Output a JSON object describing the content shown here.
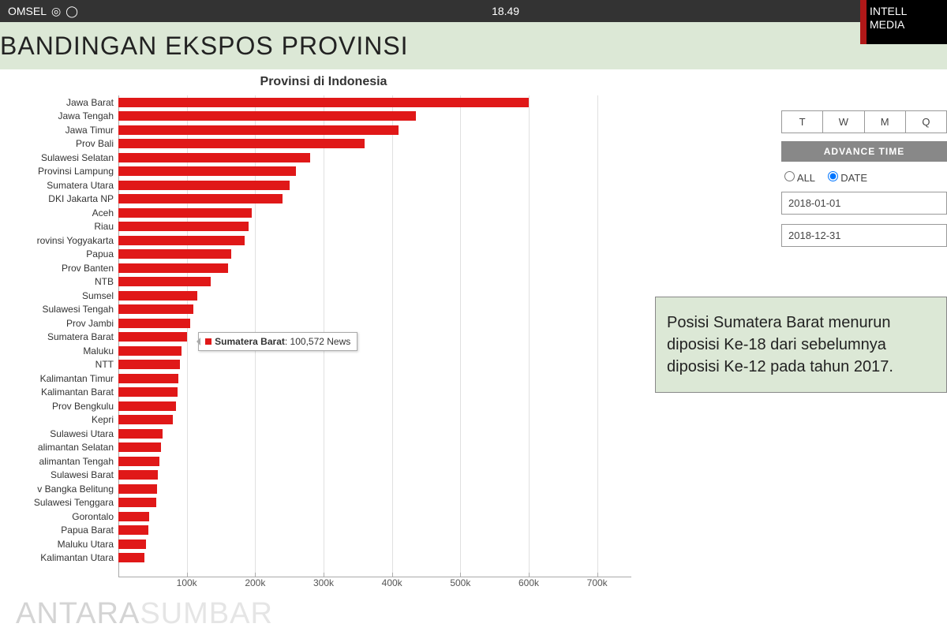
{
  "statusbar": {
    "carrier": "OMSEL",
    "time": "18.49"
  },
  "header": {
    "title": "BANDINGAN EKSPOS PROVINSI"
  },
  "logo": {
    "line1": "INTELL",
    "line2": "MEDIA"
  },
  "chart": {
    "type": "horizontal_bar",
    "title": "Provinsi di Indonesia",
    "bar_color": "#e01818",
    "background_color": "#ffffff",
    "grid_color": "#e0e0e0",
    "axis_color": "#aaaaaa",
    "label_fontsize": 12,
    "title_fontsize": 16,
    "xlim": [
      0,
      750000
    ],
    "xticks": [
      0,
      100000,
      200000,
      300000,
      400000,
      500000,
      600000,
      700000
    ],
    "xtick_labels": [
      "",
      "100k",
      "200k",
      "300k",
      "400k",
      "500k",
      "600k",
      "700k"
    ],
    "bars": [
      {
        "label": "Jawa Barat",
        "value": 600000
      },
      {
        "label": "Jawa Tengah",
        "value": 435000
      },
      {
        "label": "Jawa Timur",
        "value": 410000
      },
      {
        "label": "Prov Bali",
        "value": 360000
      },
      {
        "label": "Sulawesi Selatan",
        "value": 280000
      },
      {
        "label": "Provinsi Lampung",
        "value": 260000
      },
      {
        "label": "Sumatera Utara",
        "value": 250000
      },
      {
        "label": "DKI Jakarta NP",
        "value": 240000
      },
      {
        "label": "Aceh",
        "value": 195000
      },
      {
        "label": "Riau",
        "value": 190000
      },
      {
        "label": "rovinsi Yogyakarta",
        "value": 185000
      },
      {
        "label": "Papua",
        "value": 165000
      },
      {
        "label": "Prov Banten",
        "value": 160000
      },
      {
        "label": "NTB",
        "value": 135000
      },
      {
        "label": "Sumsel",
        "value": 115000
      },
      {
        "label": "Sulawesi Tengah",
        "value": 110000
      },
      {
        "label": "Prov Jambi",
        "value": 105000
      },
      {
        "label": "Sumatera Barat",
        "value": 100572
      },
      {
        "label": "Maluku",
        "value": 92000
      },
      {
        "label": "NTT",
        "value": 90000
      },
      {
        "label": "Kalimantan Timur",
        "value": 88000
      },
      {
        "label": "Kalimantan Barat",
        "value": 86000
      },
      {
        "label": "Prov Bengkulu",
        "value": 84000
      },
      {
        "label": "Kepri",
        "value": 80000
      },
      {
        "label": "Sulawesi Utara",
        "value": 65000
      },
      {
        "label": "alimantan Selatan",
        "value": 62000
      },
      {
        "label": "alimantan Tengah",
        "value": 60000
      },
      {
        "label": "Sulawesi Barat",
        "value": 58000
      },
      {
        "label": "v Bangka Belitung",
        "value": 56000
      },
      {
        "label": "Sulawesi Tenggara",
        "value": 55000
      },
      {
        "label": "Gorontalo",
        "value": 45000
      },
      {
        "label": "Papua Barat",
        "value": 44000
      },
      {
        "label": "Maluku Utara",
        "value": 40000
      },
      {
        "label": "Kalimantan Utara",
        "value": 38000
      }
    ],
    "tooltip": {
      "label": "Sumatera Barat",
      "value": "100,572 News",
      "row_index": 17
    }
  },
  "controls": {
    "time_buttons": [
      "T",
      "W",
      "M",
      "Q"
    ],
    "advance_time_label": "ADVANCE TIME",
    "radio_all": "ALL",
    "radio_date": "DATE",
    "start_date": "2018-01-01",
    "end_date": "2018-12-31"
  },
  "annotation": {
    "text": "Posisi Sumatera Barat menurun  diposisi  Ke-18 dari sebelumnya diposisi Ke-12 pada tahun 2017.",
    "background": "#dce8d6",
    "border": "#888888",
    "fontsize": 20
  },
  "footer": {
    "brand1": "ANTARA",
    "brand2": "SUMBAR"
  }
}
